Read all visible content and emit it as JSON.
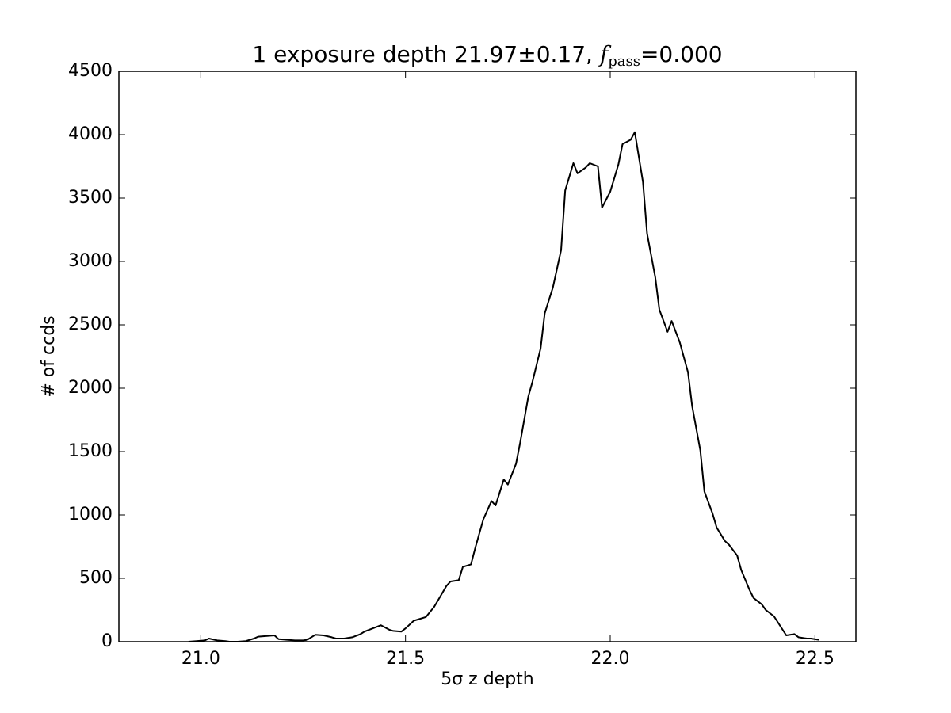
{
  "chart_data": {
    "type": "line",
    "title": {
      "text": "1 exposure depth 21.97±0.17, ",
      "symbol": "f",
      "subscript": "pass",
      "suffix": "=0.000"
    },
    "xlabel": "5σ z depth",
    "ylabel": "# of ccds",
    "x": [
      20.97,
      20.99,
      21.01,
      21.02,
      21.04,
      21.06,
      21.07,
      21.09,
      21.11,
      21.13,
      21.14,
      21.18,
      21.19,
      21.21,
      21.23,
      21.25,
      21.26,
      21.28,
      21.3,
      21.32,
      21.33,
      21.35,
      21.37,
      21.39,
      21.4,
      21.42,
      21.44,
      21.46,
      21.47,
      21.49,
      21.5,
      21.52,
      21.53,
      21.55,
      21.57,
      21.58,
      21.6,
      21.61,
      21.63,
      21.64,
      21.66,
      21.67,
      21.69,
      21.71,
      21.72,
      21.74,
      21.75,
      21.77,
      21.78,
      21.8,
      21.81,
      21.83,
      21.84,
      21.86,
      21.88,
      21.89,
      21.91,
      21.92,
      21.94,
      21.95,
      21.97,
      21.98,
      22.0,
      22.02,
      22.03,
      22.05,
      22.06,
      22.08,
      22.09,
      22.11,
      22.12,
      22.14,
      22.15,
      22.17,
      22.19,
      22.2,
      22.22,
      22.23,
      22.25,
      22.26,
      22.28,
      22.29,
      22.31,
      22.32,
      22.34,
      22.35,
      22.37,
      22.38,
      22.4,
      22.42,
      22.43,
      22.45,
      22.46,
      22.48,
      22.49,
      22.51
    ],
    "values": [
      0,
      5,
      10,
      25,
      10,
      5,
      0,
      0,
      5,
      25,
      40,
      50,
      20,
      15,
      10,
      10,
      15,
      55,
      50,
      35,
      25,
      25,
      35,
      60,
      80,
      105,
      130,
      95,
      85,
      80,
      105,
      165,
      175,
      195,
      275,
      330,
      440,
      475,
      485,
      590,
      610,
      735,
      965,
      1110,
      1075,
      1280,
      1240,
      1405,
      1570,
      1935,
      2050,
      2315,
      2590,
      2795,
      3090,
      3560,
      3775,
      3695,
      3740,
      3775,
      3750,
      3425,
      3550,
      3765,
      3925,
      3960,
      4020,
      3625,
      3220,
      2875,
      2620,
      2445,
      2530,
      2360,
      2125,
      1860,
      1510,
      1185,
      1010,
      900,
      795,
      765,
      680,
      565,
      410,
      345,
      295,
      250,
      200,
      100,
      50,
      60,
      35,
      25,
      25,
      15
    ],
    "color": "#000000",
    "xlim": [
      20.8,
      22.6
    ],
    "xticks": [
      {
        "value": 21,
        "label": "21.0"
      },
      21.5,
      {
        "value": 22,
        "label": "22.0"
      },
      22.5
    ],
    "ylim": [
      0,
      4500
    ],
    "yticks": [
      0,
      500,
      1000,
      1500,
      2000,
      2500,
      3000,
      3500,
      4000,
      4500
    ],
    "grid": false
  }
}
